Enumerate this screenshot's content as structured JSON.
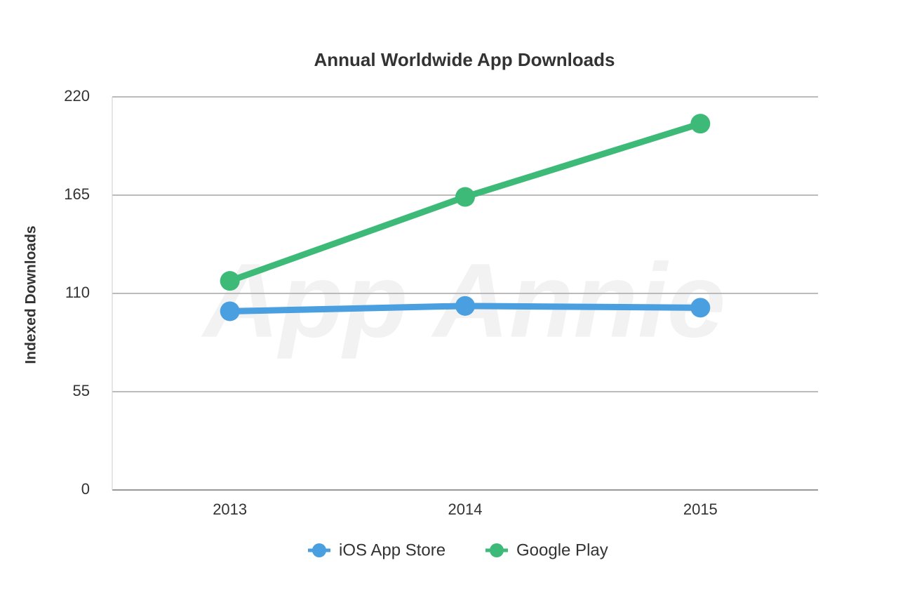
{
  "chart_data": {
    "type": "line",
    "title": "Annual Worldwide App Downloads",
    "y_label": "Indexed Downloads",
    "watermark": "App Annie",
    "categories": [
      "2013",
      "2014",
      "2015"
    ],
    "series": [
      {
        "name": "iOS App Store",
        "color": "#4a9fe0",
        "values": [
          100,
          103,
          102
        ]
      },
      {
        "name": "Google Play",
        "color": "#3dba78",
        "values": [
          117,
          164,
          205
        ]
      }
    ],
    "ylim": [
      0,
      220
    ],
    "yticks": [
      0,
      55,
      110,
      165,
      220
    ],
    "grid": true,
    "legend": "bottom"
  }
}
